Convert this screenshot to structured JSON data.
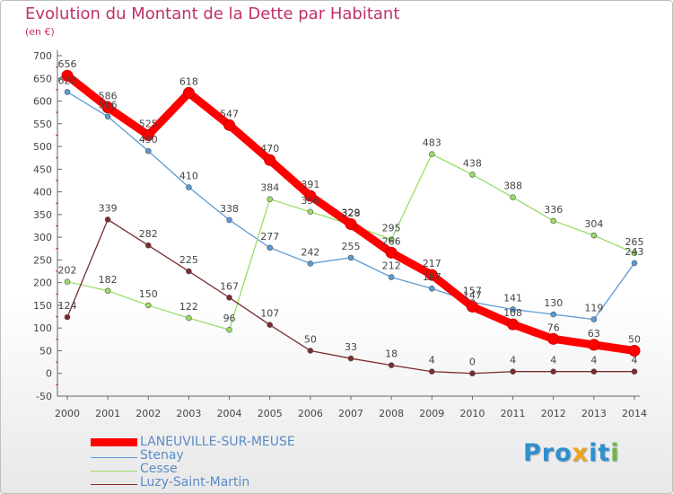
{
  "chart_data": {
    "type": "line",
    "title": "Evolution du Montant de la Dette par Habitant",
    "subtitle": "(en €)",
    "xlabel": "",
    "ylabel": "",
    "x": [
      2000,
      2001,
      2002,
      2003,
      2004,
      2005,
      2006,
      2007,
      2008,
      2009,
      2010,
      2011,
      2012,
      2013,
      2014
    ],
    "ylim": [
      -50,
      700
    ],
    "yticks": [
      -50,
      0,
      50,
      100,
      150,
      200,
      250,
      300,
      350,
      400,
      450,
      500,
      550,
      600,
      650,
      700
    ],
    "grid": false,
    "legend_position": "bottom-left",
    "series": [
      {
        "name": "LANEUVILLE-SUR-MEUSE",
        "color": "#ff0000",
        "highlight": true,
        "values": [
          656,
          586,
          525,
          618,
          547,
          470,
          391,
          329,
          266,
          217,
          147,
          108,
          76,
          63,
          50
        ]
      },
      {
        "name": "Stenay",
        "color": "#5b9bd5",
        "highlight": false,
        "values": [
          620,
          566,
          490,
          410,
          338,
          277,
          242,
          255,
          212,
          187,
          157,
          141,
          130,
          119,
          243
        ]
      },
      {
        "name": "Cesse",
        "color": "#99dd66",
        "highlight": false,
        "values": [
          202,
          182,
          150,
          122,
          96,
          384,
          356,
          328,
          295,
          483,
          438,
          388,
          336,
          304,
          265
        ]
      },
      {
        "name": "Luzy-Saint-Martin",
        "color": "#7b2b2b",
        "highlight": false,
        "values": [
          124,
          339,
          282,
          225,
          167,
          107,
          50,
          33,
          18,
          4,
          0,
          4,
          4,
          4,
          4
        ]
      }
    ]
  },
  "brand": {
    "p1": "Pro",
    "x": "x",
    "i1": "i",
    "t": "t",
    "i2": "i"
  }
}
